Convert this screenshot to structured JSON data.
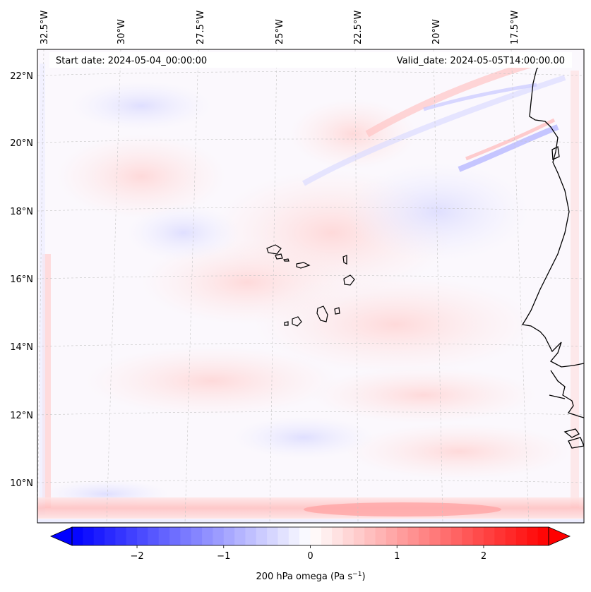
{
  "map": {
    "start_date": "Start date: 2024-05-04_00:00:00",
    "valid_date": "Valid_date: 2024-05-05T14:00:00.00",
    "lon_labels": [
      "32.5°W",
      "30°W",
      "27.5°W",
      "25°W",
      "22.5°W",
      "20°W",
      "17.5°W"
    ],
    "lat_labels": [
      "22°N",
      "20°N",
      "18°N",
      "16°N",
      "14°N",
      "12°N",
      "10°N"
    ],
    "gridlines": true,
    "coastline_color": "#000000",
    "land_features": [
      "Cape Verde islands",
      "West African coast (Senegal, Mauritania, Gambia, Guinea-Bissau)"
    ]
  },
  "colorbar": {
    "label_main": "200 hPa omega (Pa s",
    "label_exp": "−1",
    "label_close": ")",
    "ticks": [
      "−2",
      "−1",
      "0",
      "1",
      "2"
    ],
    "tick_values": [
      -2,
      -1,
      0,
      1,
      2
    ],
    "vmin": -2.75,
    "vmax": 2.75,
    "cmap": "bwr",
    "low_color": "#0000ff",
    "mid_color": "#ffffff",
    "high_color": "#ff0000",
    "extend": "both"
  }
}
